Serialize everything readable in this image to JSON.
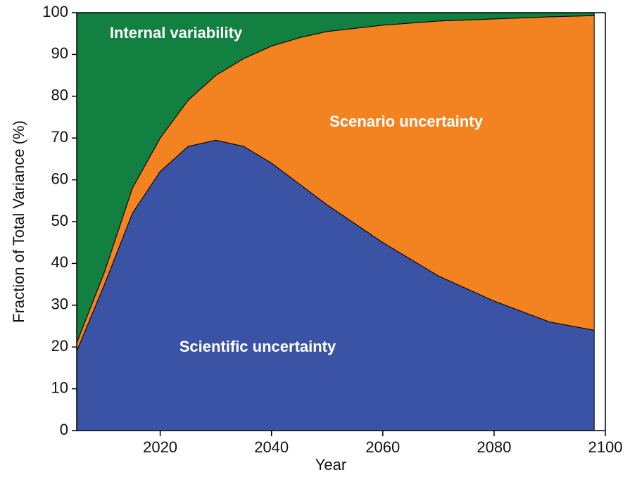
{
  "chart_data": {
    "type": "stacked_area",
    "xlabel": "Year",
    "ylabel": "Fraction of Total Variance  (%)",
    "x": [
      2005,
      2010,
      2015,
      2020,
      2025,
      2030,
      2035,
      2040,
      2045,
      2050,
      2060,
      2070,
      2080,
      2090,
      2098
    ],
    "series": [
      {
        "name": "Scientific uncertainty",
        "color": "#3a53a4",
        "values": [
          19,
          35,
          52,
          62,
          68,
          69.5,
          68,
          64,
          59,
          54,
          45,
          37,
          31,
          26,
          24
        ]
      },
      {
        "name": "Scenario uncertainty",
        "color": "#f38220",
        "values": [
          2,
          3,
          6,
          8,
          11,
          15.5,
          21,
          28,
          35,
          41.5,
          52,
          61,
          67.5,
          73,
          75.3
        ]
      },
      {
        "name": "Internal variability",
        "color": "#118040",
        "values": [
          79,
          62,
          42,
          30,
          21,
          15,
          11,
          8,
          6,
          4.5,
          3,
          2,
          1.5,
          1,
          0.7
        ]
      }
    ],
    "xlim": [
      2005,
      2100
    ],
    "ylim": [
      0,
      100
    ],
    "xticks": [
      2020,
      2040,
      2060,
      2080,
      2100
    ],
    "yticks": [
      0,
      10,
      20,
      30,
      40,
      50,
      60,
      70,
      80,
      90,
      100
    ]
  }
}
